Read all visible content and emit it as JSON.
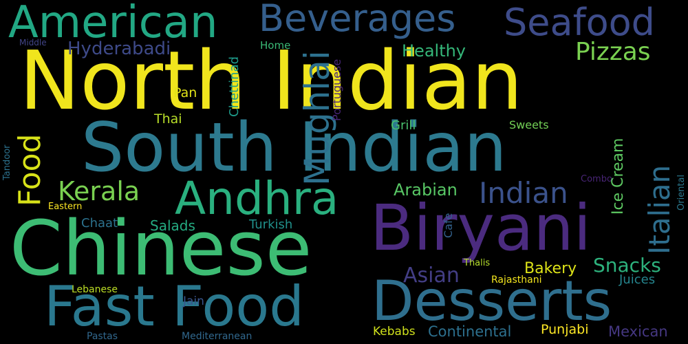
{
  "words": {
    "north_indian": {
      "text": "North Indian",
      "color": "#f0e51d"
    },
    "south_indian": {
      "text": "South Indian",
      "color": "#2d7a8f"
    },
    "chinese": {
      "text": "Chinese",
      "color": "#3dbc74"
    },
    "biryani": {
      "text": "Biryani",
      "color": "#4b2b7f"
    },
    "desserts": {
      "text": "Desserts",
      "color": "#2f6f8e"
    },
    "fast_food": {
      "text": "Fast Food",
      "color": "#2a788e"
    },
    "american": {
      "text": "American",
      "color": "#22a884"
    },
    "beverages": {
      "text": "Beverages",
      "color": "#355f8d"
    },
    "seafood": {
      "text": "Seafood",
      "color": "#3e4c8a"
    },
    "andhra": {
      "text": "Andhra",
      "color": "#2ab07f"
    },
    "mughlai": {
      "text": "Mughlai",
      "color": "#2d718e"
    },
    "food": {
      "text": "Food",
      "color": "#d8e219"
    },
    "kerala": {
      "text": "Kerala",
      "color": "#7ad151"
    },
    "indian": {
      "text": "Indian",
      "color": "#3b528b"
    },
    "italian": {
      "text": "Italian",
      "color": "#2e6e8e"
    },
    "pizzas": {
      "text": "Pizzas",
      "color": "#7ad151"
    },
    "hyderabadi": {
      "text": "Hyderabadi",
      "color": "#3e4a89"
    },
    "healthy": {
      "text": "Healthy",
      "color": "#35b779"
    },
    "ice_cream": {
      "text": "Ice Cream",
      "color": "#5ec962"
    },
    "snacks": {
      "text": "Snacks",
      "color": "#2db27d"
    },
    "asian": {
      "text": "Asian",
      "color": "#433e85"
    },
    "arabian": {
      "text": "Arabian",
      "color": "#58c765"
    },
    "bakery": {
      "text": "Bakery",
      "color": "#dde318"
    },
    "chaat": {
      "text": "Chaat",
      "color": "#2c728e"
    },
    "salads": {
      "text": "Salads",
      "color": "#25ac82"
    },
    "turkish": {
      "text": "Turkish",
      "color": "#21918c"
    },
    "juices": {
      "text": "Juices",
      "color": "#25858e"
    },
    "continental": {
      "text": "Continental",
      "color": "#2d708e"
    },
    "mexican": {
      "text": "Mexican",
      "color": "#453781"
    },
    "kebabs": {
      "text": "Kebabs",
      "color": "#d0e11c"
    },
    "punjabi": {
      "text": "Punjabi",
      "color": "#fde725"
    },
    "jain": {
      "text": "Jain",
      "color": "#39568c"
    },
    "pastas": {
      "text": "Pastas",
      "color": "#31688e"
    },
    "mediterranean": {
      "text": "Mediterranean",
      "color": "#31688e"
    },
    "lebanese": {
      "text": "Lebanese",
      "color": "#bddf26"
    },
    "thalis": {
      "text": "Thalis",
      "color": "#b5de2b"
    },
    "rajasthani": {
      "text": "Rajasthani",
      "color": "#f4e61e"
    },
    "thai": {
      "text": "Thai",
      "color": "#b8de29"
    },
    "pan": {
      "text": "Pan",
      "color": "#e2e418"
    },
    "chettinad": {
      "text": "Chettinad",
      "color": "#1e9b8a"
    },
    "portuguese": {
      "text": "Portuguese",
      "color": "#482677"
    },
    "home": {
      "text": "Home",
      "color": "#3aba76"
    },
    "grill": {
      "text": "Grill",
      "color": "#4ac16d"
    },
    "sweets": {
      "text": "Sweets",
      "color": "#73d056"
    },
    "combo": {
      "text": "Combo",
      "color": "#482475"
    },
    "cafe": {
      "text": "Cafe",
      "color": "#33628d"
    },
    "tandoor": {
      "text": "Tandoor",
      "color": "#2c728e"
    },
    "oriental": {
      "text": "Oriental",
      "color": "#2a788e"
    },
    "middle": {
      "text": "Middle",
      "color": "#414487"
    },
    "eastern": {
      "text": "Eastern",
      "color": "#fde725"
    }
  }
}
